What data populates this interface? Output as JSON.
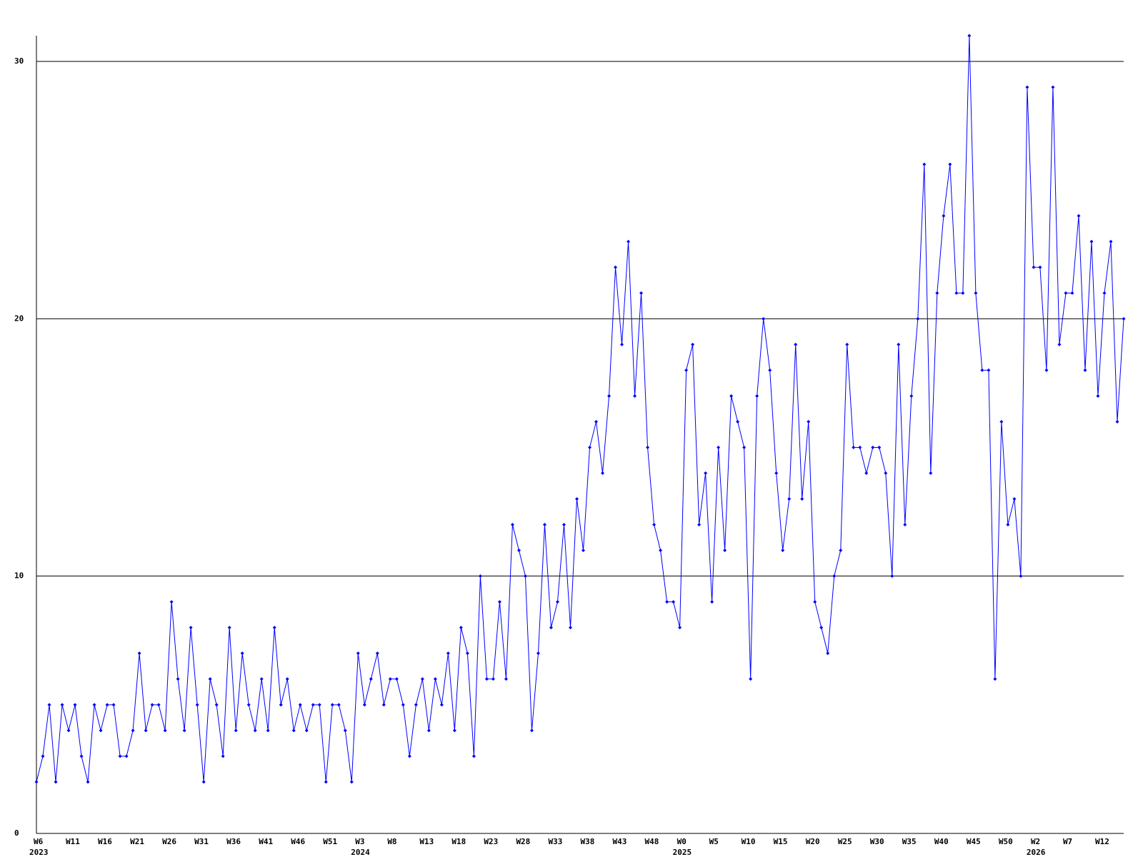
{
  "chart_data": {
    "type": "line",
    "categories": [
      "W6",
      null,
      null,
      null,
      null,
      "W11",
      null,
      null,
      null,
      null,
      "W16",
      null,
      null,
      null,
      null,
      "W21",
      null,
      null,
      null,
      null,
      "W26",
      null,
      null,
      null,
      null,
      "W31",
      null,
      null,
      null,
      null,
      "W36",
      null,
      null,
      null,
      null,
      "W41",
      null,
      null,
      null,
      null,
      "W46",
      null,
      null,
      null,
      null,
      "W51",
      null,
      null,
      null,
      null,
      "W3",
      null,
      null,
      null,
      null,
      "W8",
      null,
      null,
      null,
      null,
      "W13",
      null,
      null,
      null,
      null,
      "W18",
      null,
      null,
      null,
      null,
      "W23",
      null,
      null,
      null,
      null,
      "W28",
      null,
      null,
      null,
      null,
      "W33",
      null,
      null,
      null,
      null,
      "W38",
      null,
      null,
      null,
      null,
      "W43",
      null,
      null,
      null,
      null,
      "W48",
      null,
      null,
      null,
      null,
      "W0",
      null,
      null,
      null,
      null,
      "W5",
      null,
      null,
      null,
      null,
      "W10",
      null,
      null,
      null,
      null,
      "W15",
      null,
      null,
      null,
      null,
      "W20",
      null,
      null,
      null,
      null,
      "W25",
      null,
      null,
      null,
      null,
      "W30",
      null,
      null,
      null,
      null,
      "W35",
      null,
      null,
      null,
      null,
      "W40",
      null,
      null,
      null,
      null,
      "W45",
      null,
      null,
      null,
      null,
      "W50",
      null,
      null,
      null,
      null,
      "W2",
      null,
      null,
      null,
      null,
      "W7",
      null,
      null,
      null,
      null,
      "W12",
      null,
      null,
      null,
      null
    ],
    "category_years": [
      "2023",
      null,
      null,
      null,
      null,
      null,
      null,
      null,
      null,
      null,
      null,
      null,
      null,
      null,
      null,
      null,
      null,
      null,
      null,
      null,
      null,
      null,
      null,
      null,
      null,
      null,
      null,
      null,
      null,
      null,
      null,
      null,
      null,
      null,
      null,
      null,
      null,
      null,
      null,
      null,
      null,
      null,
      null,
      null,
      null,
      null,
      null,
      null,
      null,
      null,
      "2024",
      null,
      null,
      null,
      null,
      null,
      null,
      null,
      null,
      null,
      null,
      null,
      null,
      null,
      null,
      null,
      null,
      null,
      null,
      null,
      null,
      null,
      null,
      null,
      null,
      null,
      null,
      null,
      null,
      null,
      null,
      null,
      null,
      null,
      null,
      null,
      null,
      null,
      null,
      null,
      null,
      null,
      null,
      null,
      null,
      null,
      null,
      null,
      null,
      null,
      "2025",
      null,
      null,
      null,
      null,
      null,
      null,
      null,
      null,
      null,
      null,
      null,
      null,
      null,
      null,
      null,
      null,
      null,
      null,
      null,
      null,
      null,
      null,
      null,
      null,
      null,
      null,
      null,
      null,
      null,
      null,
      null,
      null,
      null,
      null,
      null,
      null,
      null,
      null,
      null,
      null,
      null,
      null,
      null,
      null,
      null,
      null,
      null,
      null,
      null,
      null,
      null,
      null,
      null,
      null,
      "2026",
      null,
      null,
      null,
      null,
      null,
      null,
      null,
      null,
      null,
      null,
      null,
      null,
      null,
      null
    ],
    "series": [
      {
        "color": "#0000ff",
        "values": [
          2,
          3,
          5,
          2,
          5,
          4,
          5,
          3,
          2,
          5,
          4,
          5,
          5,
          3,
          3,
          4,
          7,
          4,
          5,
          5,
          4,
          9,
          6,
          4,
          8,
          5,
          2,
          6,
          5,
          3,
          8,
          4,
          7,
          5,
          4,
          6,
          4,
          8,
          5,
          6,
          4,
          5,
          4,
          5,
          5,
          2,
          5,
          5,
          4,
          2,
          7,
          5,
          6,
          7,
          5,
          6,
          6,
          5,
          3,
          5,
          6,
          4,
          6,
          5,
          7,
          4,
          8,
          7,
          3,
          10,
          6,
          6,
          9,
          6,
          12,
          11,
          10,
          4,
          7,
          12,
          8,
          9,
          12,
          8,
          13,
          11,
          15,
          16,
          14,
          17,
          22,
          19,
          23,
          17,
          21,
          15,
          12,
          11,
          9,
          9,
          8,
          18,
          19,
          12,
          14,
          9,
          15,
          11,
          17,
          16,
          15,
          6,
          17,
          20,
          18,
          14,
          11,
          13,
          19,
          13,
          16,
          9,
          8,
          7,
          10,
          11,
          19,
          15,
          15,
          14,
          15,
          15,
          14,
          10,
          19,
          12,
          17,
          20,
          26,
          14,
          21,
          24,
          26,
          21,
          21,
          31,
          21,
          18,
          18,
          6,
          16,
          12,
          13,
          10,
          29,
          22,
          22,
          18,
          29,
          19,
          21,
          21,
          24,
          18,
          23,
          17,
          21,
          23,
          16,
          20
        ]
      }
    ],
    "ylim": [
      0,
      31
    ],
    "yticks": [
      0,
      10,
      20,
      30
    ],
    "grid": true
  }
}
